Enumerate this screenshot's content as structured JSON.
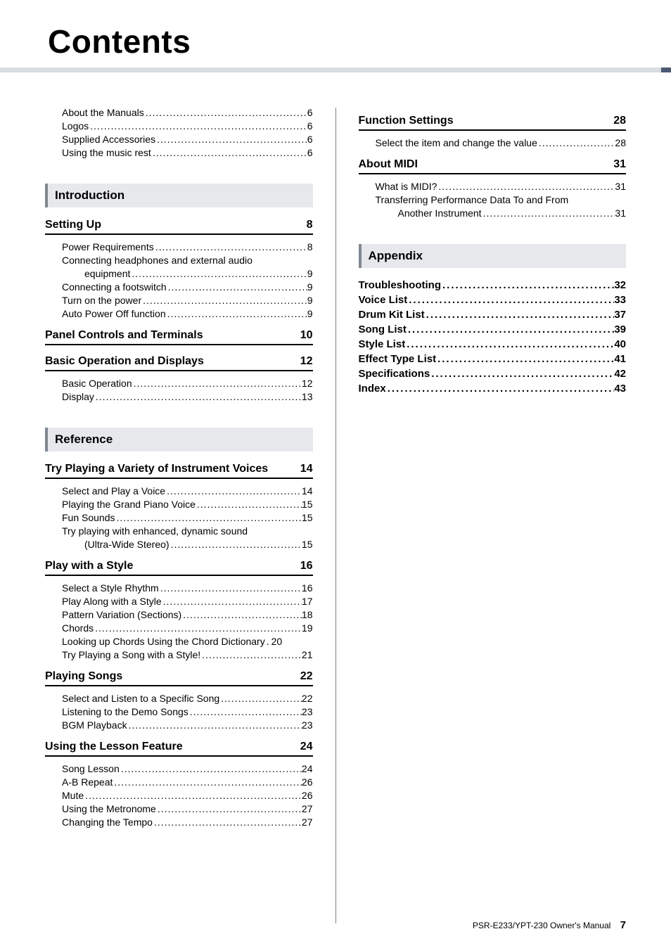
{
  "title": "Contents",
  "footer": {
    "manual": "PSR-E233/YPT-230  Owner's Manual",
    "page": "7"
  },
  "accent_color": "#4a5a73",
  "rule_color": "#d9dde2",
  "dots_char": ".",
  "col_left": {
    "preamble": [
      {
        "label": "About the Manuals",
        "page": "6"
      },
      {
        "label": "Logos",
        "page": "6"
      },
      {
        "label": "Supplied Accessories",
        "page": "6"
      },
      {
        "label": "Using the music rest",
        "page": "6"
      }
    ],
    "sections": [
      {
        "head": "Introduction",
        "subs": [
          {
            "title": "Setting Up",
            "page": "8",
            "items": [
              {
                "label": "Power Requirements",
                "page": "8"
              },
              {
                "multiline": true,
                "label": "Connecting headphones and external audio",
                "cont": "equipment",
                "page": "9"
              },
              {
                "label": "Connecting a footswitch",
                "page": "9"
              },
              {
                "label": "Turn on the power",
                "page": "9"
              },
              {
                "label": "Auto Power Off function",
                "page": "9"
              }
            ]
          },
          {
            "title": "Panel Controls and Terminals",
            "page": "10",
            "items": []
          },
          {
            "title": "Basic Operation and Displays",
            "page": "12",
            "items": [
              {
                "label": "Basic Operation",
                "page": "12"
              },
              {
                "label": "Display",
                "page": "13"
              }
            ]
          }
        ]
      },
      {
        "head": "Reference",
        "subs": [
          {
            "title": "Try Playing a Variety of Instrument Voices",
            "page": "14",
            "items": [
              {
                "label": "Select and Play a Voice",
                "page": "14"
              },
              {
                "label": "Playing the Grand Piano Voice",
                "page": "15"
              },
              {
                "label": "Fun Sounds",
                "page": "15"
              },
              {
                "multiline": true,
                "label": "Try playing with enhanced, dynamic sound",
                "cont": "(Ultra-Wide Stereo)",
                "page": "15"
              }
            ]
          },
          {
            "title": "Play with a Style",
            "page": "16",
            "items": [
              {
                "label": "Select a Style Rhythm",
                "page": "16"
              },
              {
                "label": "Play Along with a Style",
                "page": "17"
              },
              {
                "label": "Pattern Variation (Sections)",
                "page": "18"
              },
              {
                "label": "Chords",
                "page": "19"
              },
              {
                "label": "Looking up Chords Using the Chord Dictionary",
                "page": "20",
                "tight": true
              },
              {
                "label": "Try Playing a Song with a Style!",
                "page": "21"
              }
            ]
          },
          {
            "title": "Playing Songs",
            "page": "22",
            "items": [
              {
                "label": "Select and Listen to a Specific Song",
                "page": "22"
              },
              {
                "label": "Listening to the Demo Songs",
                "page": "23"
              },
              {
                "label": "BGM Playback",
                "page": "23"
              }
            ]
          },
          {
            "title": "Using the Lesson Feature",
            "page": "24",
            "items": [
              {
                "label": "Song Lesson",
                "page": "24"
              },
              {
                "label": "A-B Repeat",
                "page": "26"
              },
              {
                "label": "Mute",
                "page": "26"
              },
              {
                "label": "Using the Metronome",
                "page": "27"
              },
              {
                "label": "Changing the Tempo",
                "page": "27"
              }
            ]
          }
        ]
      }
    ]
  },
  "col_right": {
    "subs_top": [
      {
        "title": "Function Settings",
        "page": "28",
        "items": [
          {
            "label": "Select the item and change the value",
            "page": "28"
          }
        ]
      },
      {
        "title": "About MIDI",
        "page": "31",
        "items": [
          {
            "label": "What is MIDI?",
            "page": "31"
          },
          {
            "multiline": true,
            "label": "Transferring Performance Data To and From",
            "cont": "Another Instrument",
            "page": "31"
          }
        ]
      }
    ],
    "appendix_head": "Appendix",
    "appendix": [
      {
        "label": "Troubleshooting",
        "page": "32"
      },
      {
        "label": "Voice List",
        "page": "33"
      },
      {
        "label": "Drum Kit List",
        "page": "37"
      },
      {
        "label": "Song List",
        "page": "39"
      },
      {
        "label": "Style List",
        "page": "40"
      },
      {
        "label": "Effect Type List",
        "page": "41"
      },
      {
        "label": "Specifications",
        "page": "42"
      },
      {
        "label": "Index",
        "page": "43"
      }
    ]
  }
}
